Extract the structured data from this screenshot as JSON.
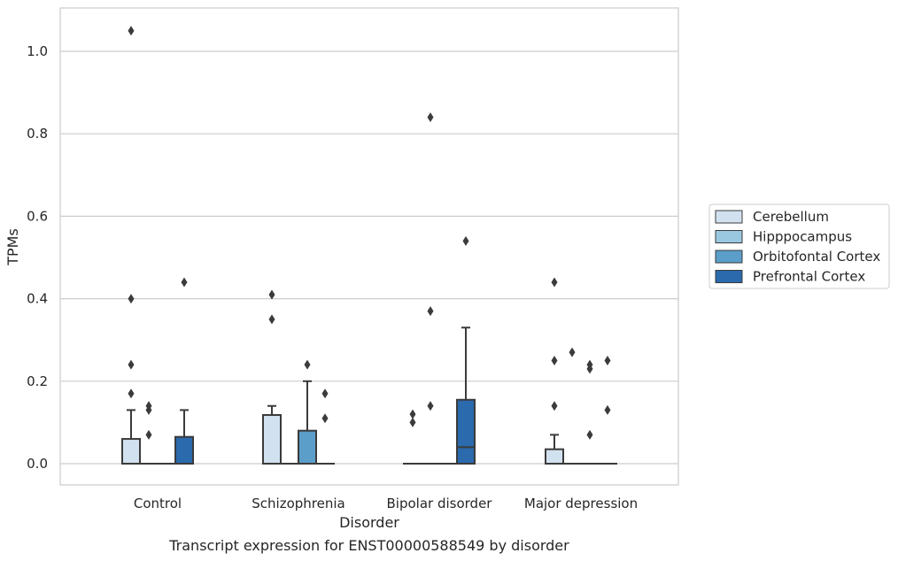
{
  "chart_data": {
    "type": "box",
    "title": "",
    "caption": "Transcript expression for ENST00000588549 by disorder",
    "xlabel": "Disorder",
    "ylabel": "TPMs",
    "ylim": [
      -0.05,
      1.1
    ],
    "yticks": [
      0.0,
      0.2,
      0.4,
      0.6,
      0.8,
      1.0
    ],
    "ytick_labels": [
      "0.0",
      "0.2",
      "0.4",
      "0.6",
      "0.8",
      "1.0"
    ],
    "grid": "horizontal",
    "legend_position": "right",
    "categories": [
      "Control",
      "Schizophrenia",
      "Bipolar disorder",
      "Major depression"
    ],
    "series": [
      {
        "name": "Cerebellum",
        "color": "#d2e1f0",
        "boxes": [
          {
            "q1": 0.0,
            "median": 0.0,
            "q3": 0.06,
            "whisker_low": 0.0,
            "whisker_high": 0.13,
            "outliers": [
              0.17,
              0.24,
              0.4,
              1.05
            ]
          },
          {
            "q1": 0.0,
            "median": 0.0,
            "q3": 0.118,
            "whisker_low": 0.0,
            "whisker_high": 0.14,
            "outliers": [
              0.35,
              0.41
            ]
          },
          {
            "q1": 0.0,
            "median": 0.0,
            "q3": 0.0,
            "whisker_low": 0.0,
            "whisker_high": 0.0,
            "outliers": [
              0.1,
              0.12
            ]
          },
          {
            "q1": 0.0,
            "median": 0.0,
            "q3": 0.035,
            "whisker_low": 0.0,
            "whisker_high": 0.07,
            "outliers": [
              0.14,
              0.25,
              0.44
            ]
          }
        ]
      },
      {
        "name": "Hipppocampus",
        "color": "#9ac8e0",
        "boxes": [
          {
            "q1": 0.0,
            "median": 0.0,
            "q3": 0.0,
            "whisker_low": 0.0,
            "whisker_high": 0.0,
            "outliers": [
              0.07,
              0.13,
              0.14
            ]
          },
          {
            "q1": 0.0,
            "median": 0.0,
            "q3": 0.0,
            "whisker_low": 0.0,
            "whisker_high": 0.0,
            "outliers": []
          },
          {
            "q1": 0.0,
            "median": 0.0,
            "q3": 0.0,
            "whisker_low": 0.0,
            "whisker_high": 0.0,
            "outliers": [
              0.14,
              0.37,
              0.84
            ]
          },
          {
            "q1": 0.0,
            "median": 0.0,
            "q3": 0.0,
            "whisker_low": 0.0,
            "whisker_high": 0.0,
            "outliers": [
              0.27
            ]
          }
        ]
      },
      {
        "name": "Orbitofontal Cortex",
        "color": "#5a9ec9",
        "boxes": [
          {
            "q1": 0.0,
            "median": 0.0,
            "q3": 0.0,
            "whisker_low": 0.0,
            "whisker_high": 0.0,
            "outliers": []
          },
          {
            "q1": 0.0,
            "median": 0.0,
            "q3": 0.08,
            "whisker_low": 0.0,
            "whisker_high": 0.2,
            "outliers": [
              0.24
            ]
          },
          {
            "q1": 0.0,
            "median": 0.0,
            "q3": 0.0,
            "whisker_low": 0.0,
            "whisker_high": 0.0,
            "outliers": []
          },
          {
            "q1": 0.0,
            "median": 0.0,
            "q3": 0.0,
            "whisker_low": 0.0,
            "whisker_high": 0.0,
            "outliers": [
              0.07,
              0.23,
              0.24
            ]
          }
        ]
      },
      {
        "name": "Prefrontal Cortex",
        "color": "#2a6aad",
        "boxes": [
          {
            "q1": 0.0,
            "median": 0.0,
            "q3": 0.065,
            "whisker_low": 0.0,
            "whisker_high": 0.13,
            "outliers": [
              0.44
            ]
          },
          {
            "q1": 0.0,
            "median": 0.0,
            "q3": 0.0,
            "whisker_low": 0.0,
            "whisker_high": 0.0,
            "outliers": [
              0.11,
              0.17
            ]
          },
          {
            "q1": 0.0,
            "median": 0.04,
            "q3": 0.155,
            "whisker_low": 0.0,
            "whisker_high": 0.33,
            "outliers": [
              0.54
            ]
          },
          {
            "q1": 0.0,
            "median": 0.0,
            "q3": 0.0,
            "whisker_low": 0.0,
            "whisker_high": 0.0,
            "outliers": [
              0.13,
              0.25
            ]
          }
        ]
      }
    ]
  }
}
